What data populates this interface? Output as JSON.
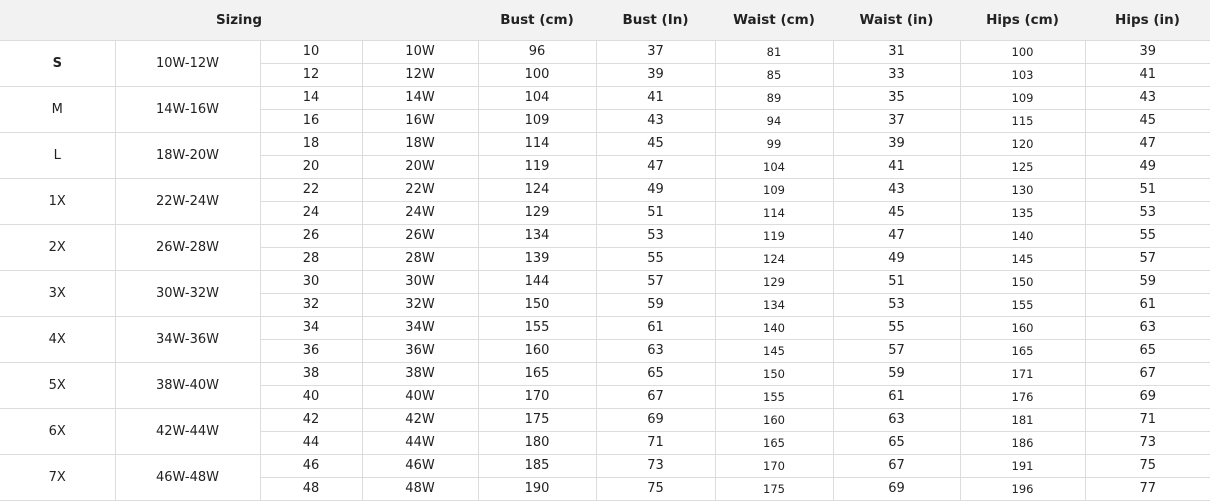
{
  "header": {
    "sizing": "Sizing",
    "columns": [
      "Bust (cm)",
      "Bust (In)",
      "Waist (cm)",
      "Waist (in)",
      "Hips (cm)",
      "Hips (in)"
    ]
  },
  "groups": [
    {
      "size": "S",
      "range": "10W-12W",
      "rows": [
        [
          "10",
          "10W",
          "96",
          "37",
          "81",
          "31",
          "100",
          "39"
        ],
        [
          "12",
          "12W",
          "100",
          "39",
          "85",
          "33",
          "103",
          "41"
        ]
      ]
    },
    {
      "size": "M",
      "range": "14W-16W",
      "rows": [
        [
          "14",
          "14W",
          "104",
          "41",
          "89",
          "35",
          "109",
          "43"
        ],
        [
          "16",
          "16W",
          "109",
          "43",
          "94",
          "37",
          "115",
          "45"
        ]
      ]
    },
    {
      "size": "L",
      "range": "18W-20W",
      "rows": [
        [
          "18",
          "18W",
          "114",
          "45",
          "99",
          "39",
          "120",
          "47"
        ],
        [
          "20",
          "20W",
          "119",
          "47",
          "104",
          "41",
          "125",
          "49"
        ]
      ]
    },
    {
      "size": "1X",
      "range": "22W-24W",
      "rows": [
        [
          "22",
          "22W",
          "124",
          "49",
          "109",
          "43",
          "130",
          "51"
        ],
        [
          "24",
          "24W",
          "129",
          "51",
          "114",
          "45",
          "135",
          "53"
        ]
      ]
    },
    {
      "size": "2X",
      "range": "26W-28W",
      "rows": [
        [
          "26",
          "26W",
          "134",
          "53",
          "119",
          "47",
          "140",
          "55"
        ],
        [
          "28",
          "28W",
          "139",
          "55",
          "124",
          "49",
          "145",
          "57"
        ]
      ]
    },
    {
      "size": "3X",
      "range": "30W-32W",
      "rows": [
        [
          "30",
          "30W",
          "144",
          "57",
          "129",
          "51",
          "150",
          "59"
        ],
        [
          "32",
          "32W",
          "150",
          "59",
          "134",
          "53",
          "155",
          "61"
        ]
      ]
    },
    {
      "size": "4X",
      "range": "34W-36W",
      "rows": [
        [
          "34",
          "34W",
          "155",
          "61",
          "140",
          "55",
          "160",
          "63"
        ],
        [
          "36",
          "36W",
          "160",
          "63",
          "145",
          "57",
          "165",
          "65"
        ]
      ]
    },
    {
      "size": "5X",
      "range": "38W-40W",
      "rows": [
        [
          "38",
          "38W",
          "165",
          "65",
          "150",
          "59",
          "171",
          "67"
        ],
        [
          "40",
          "40W",
          "170",
          "67",
          "155",
          "61",
          "176",
          "69"
        ]
      ]
    },
    {
      "size": "6X",
      "range": "42W-44W",
      "rows": [
        [
          "42",
          "42W",
          "175",
          "69",
          "160",
          "63",
          "181",
          "71"
        ],
        [
          "44",
          "44W",
          "180",
          "71",
          "165",
          "65",
          "186",
          "73"
        ]
      ]
    },
    {
      "size": "7X",
      "range": "46W-48W",
      "rows": [
        [
          "46",
          "46W",
          "185",
          "73",
          "170",
          "67",
          "191",
          "75"
        ],
        [
          "48",
          "48W",
          "190",
          "75",
          "175",
          "69",
          "196",
          "77"
        ]
      ]
    }
  ]
}
